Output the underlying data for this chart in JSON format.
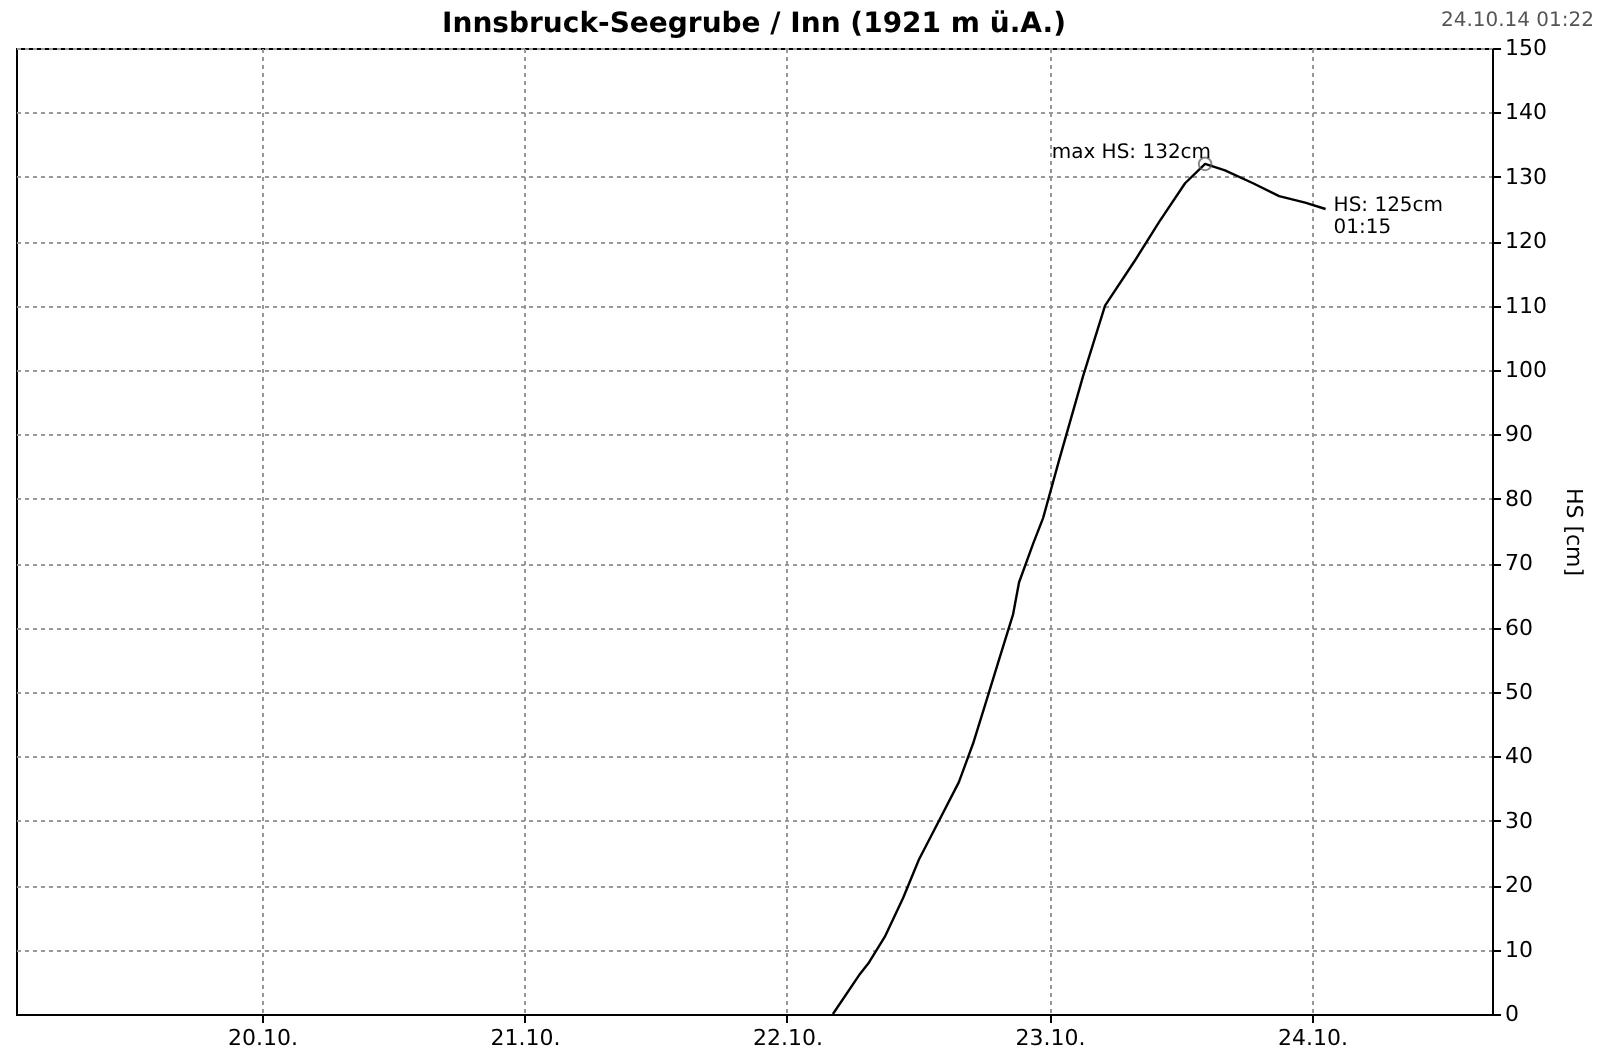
{
  "chart_data": {
    "type": "line",
    "title": "Innsbruck-Seegrube / Inn (1921 m ü.A.)",
    "ylabel": "HS [cm]",
    "annotations": [
      "24.10.14 01:22",
      {
        "text": "max HS: 132cm",
        "x": "--10-23T14:14",
        "y": 132
      },
      {
        "text": "HS: 125cm\n01:15",
        "x": "--10-24T01:15",
        "y": 125
      }
    ],
    "x": [
      "--10-22T04:12",
      "--10-22T06:35",
      "--10-22T07:30",
      "--10-22T08:57",
      "--10-22T10:37",
      "--10-22T12:04",
      "--10-22T13:54",
      "--10-22T15:43",
      "--10-22T17:01",
      "--10-22T18:07",
      "--10-22T19:23",
      "--10-22T20:40",
      "--10-22T21:13",
      "--10-22T22:30",
      "--10-22T23:25",
      "--10-23T00:53",
      "--10-23T03:04",
      "--10-23T05:05",
      "--10-23T07:49",
      "--10-23T10:02",
      "--10-23T12:24",
      "--10-23T14:14",
      "--10-23T16:03",
      "--10-23T18:37",
      "--10-23T21:00",
      "--10-23T23:23",
      "--10-24T01:15"
    ],
    "series": [
      {
        "color": "#000000",
        "values": [
          0,
          6,
          8,
          12,
          18,
          24,
          30,
          36,
          42,
          48,
          55,
          62,
          67,
          73,
          77,
          86,
          99,
          110,
          117,
          123,
          129,
          132,
          131,
          129,
          127,
          126,
          125
        ]
      }
    ],
    "xlim": [
      "--10-19T01:30",
      "--10-24T16:28"
    ],
    "xticks": [
      {
        "value": "--10-20T00:00",
        "label": "20.10."
      },
      {
        "value": "--10-21T00:00",
        "label": "21.10."
      },
      {
        "value": "--10-22T00:00",
        "label": "22.10."
      },
      {
        "value": "--10-23T00:00",
        "label": "23.10."
      },
      {
        "value": "--10-24T00:00",
        "label": "24.10."
      }
    ],
    "ylim": [
      0,
      150
    ],
    "yticks": [
      0,
      10,
      20,
      30,
      40,
      50,
      60,
      70,
      80,
      90,
      100,
      110,
      120,
      130,
      140,
      150
    ],
    "grid": true,
    "marker": "none",
    "line_style": "solid"
  }
}
